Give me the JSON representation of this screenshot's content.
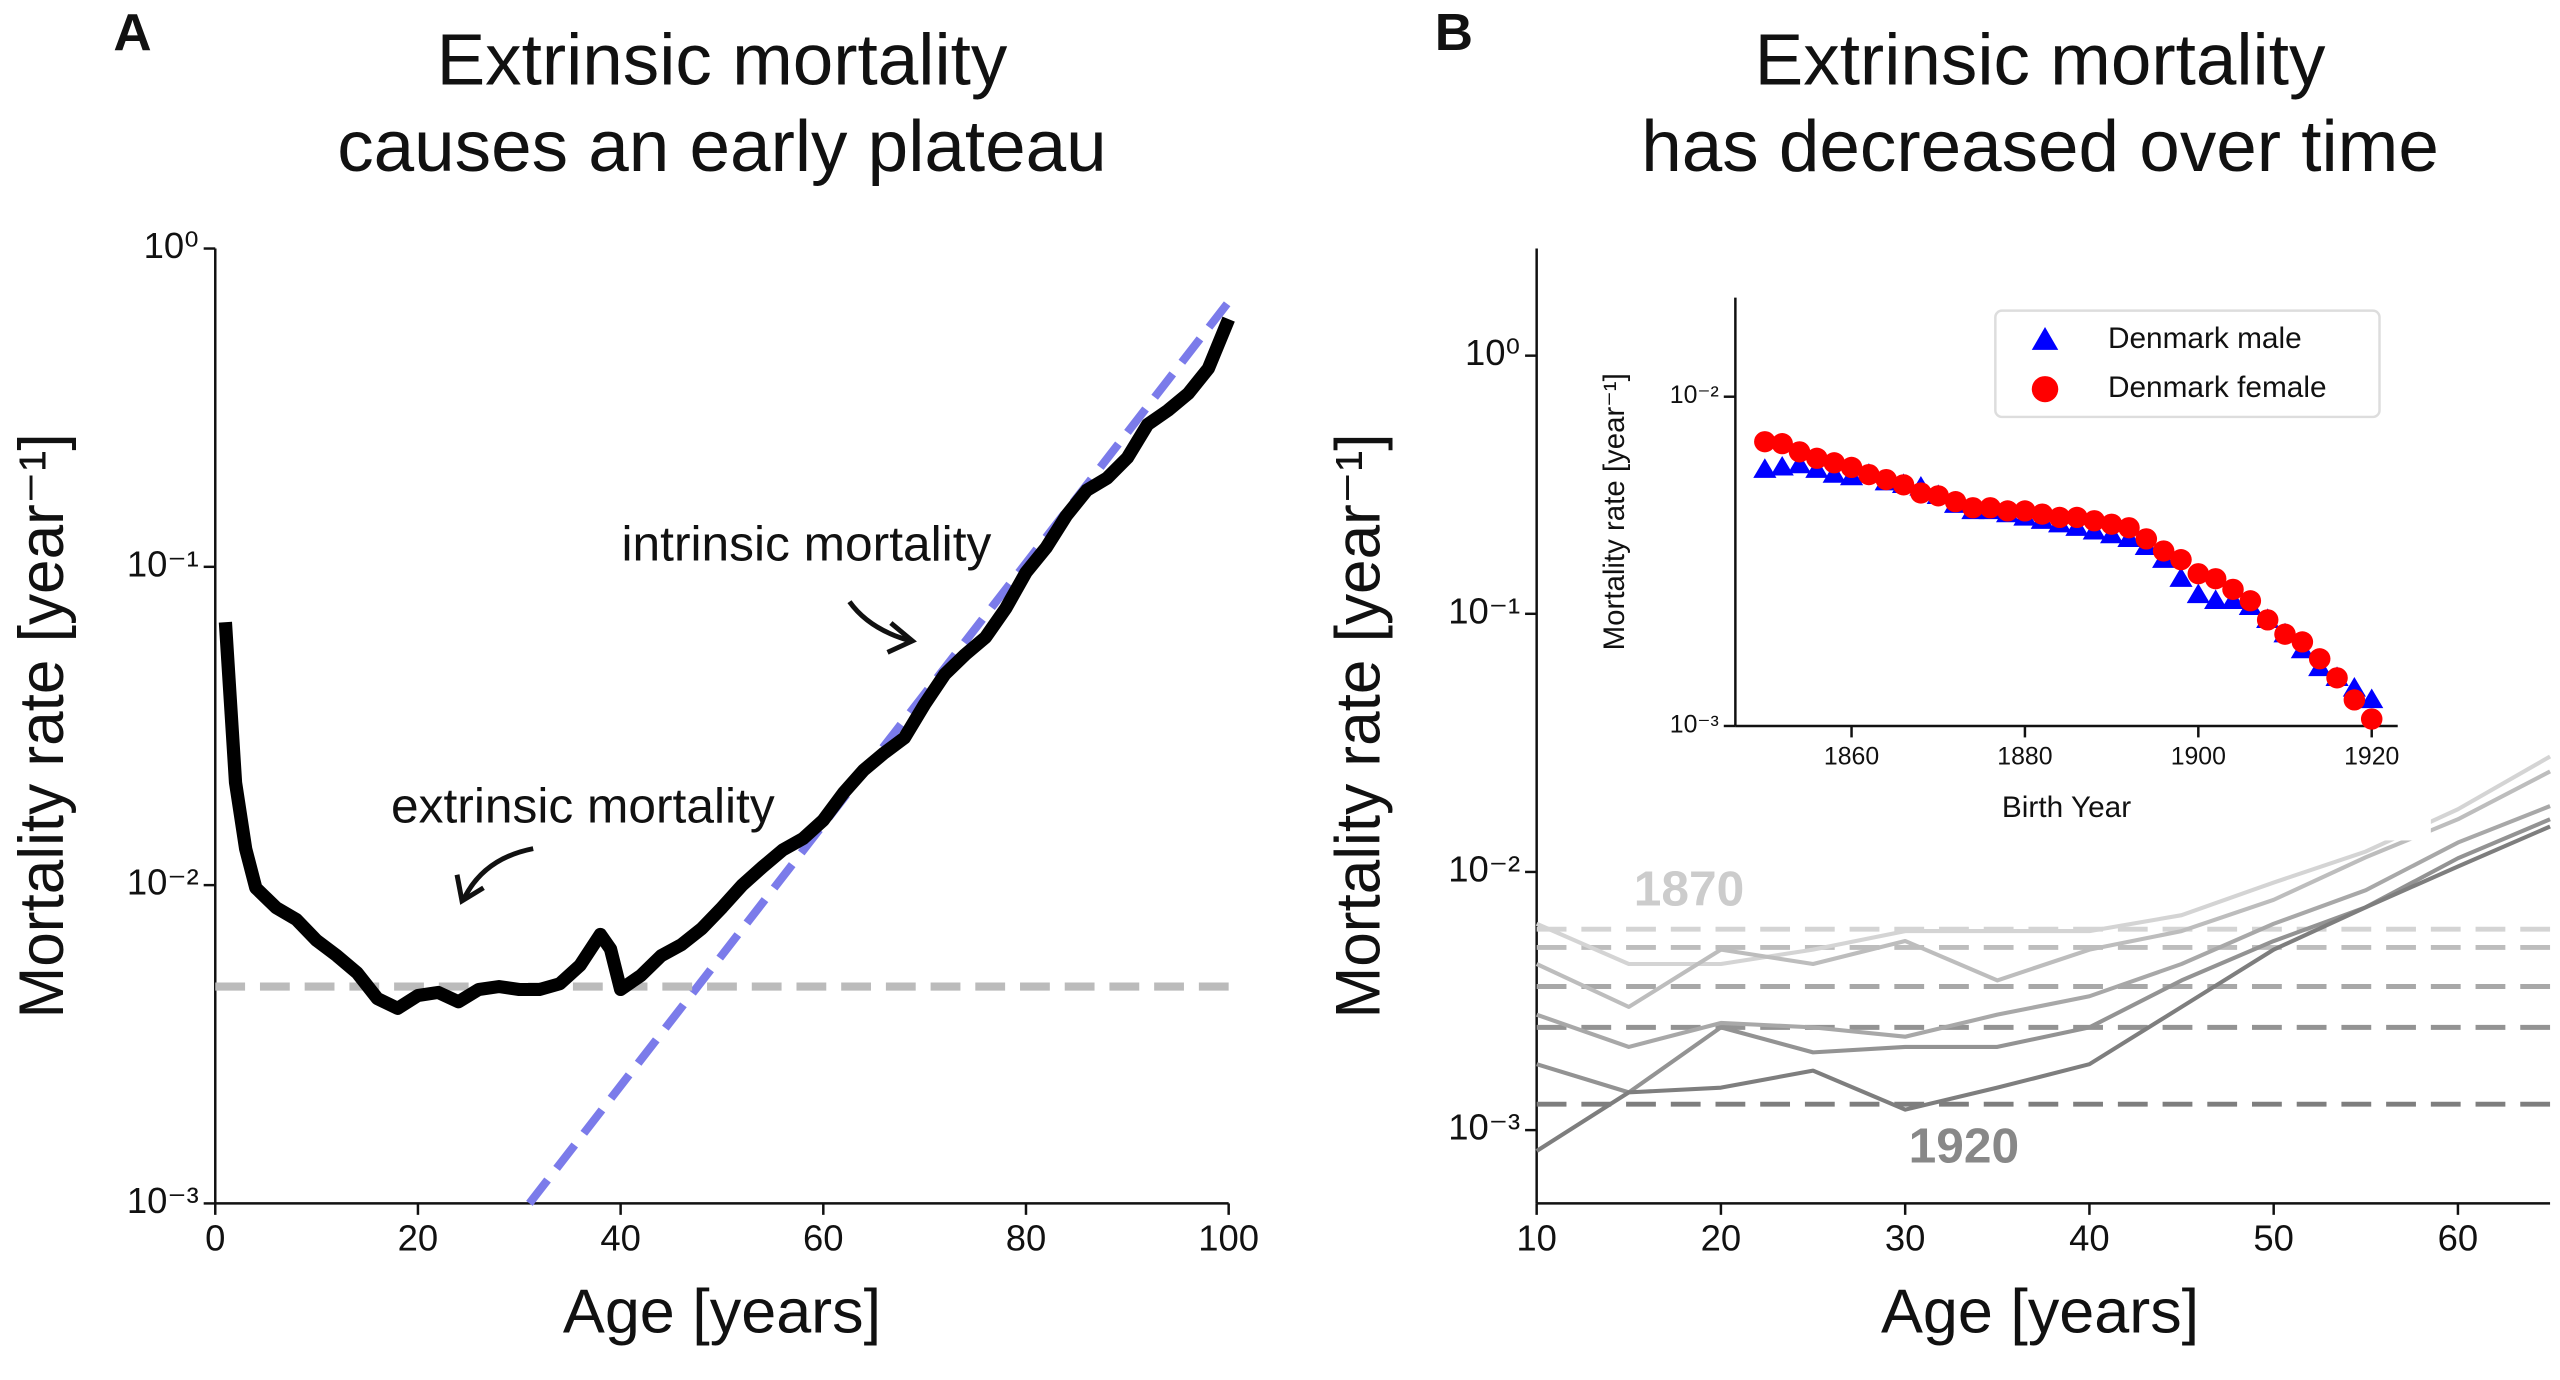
{
  "chart_data": [
    {
      "type": "line",
      "panel_label": "A",
      "title": [
        "Extrinsic mortality",
        "causes an early plateau"
      ],
      "xlabel": "Age [years]",
      "ylabel": "Mortality rate [year⁻¹]",
      "xlim": [
        0,
        100
      ],
      "xticks": [
        0,
        20,
        40,
        60,
        80,
        100
      ],
      "ylim": [
        0.001,
        1
      ],
      "log_y": true,
      "yticks": [
        {
          "value": 0.001,
          "label": "10⁻³"
        },
        {
          "value": 0.01,
          "label": "10⁻²"
        },
        {
          "value": 0.1,
          "label": "10⁻¹"
        },
        {
          "value": 1,
          "label": "10⁰"
        }
      ],
      "annotations": [
        "intrinsic mortality",
        "extrinsic mortality"
      ],
      "series": [
        {
          "color": "#7b7bea",
          "linestyle": "dashed",
          "linewidth": 5,
          "x": [
            31,
            100
          ],
          "values": [
            0.001,
            0.68
          ]
        },
        {
          "color": "#bbbbbb",
          "linestyle": "dashed",
          "linewidth": 5,
          "x": [
            0,
            100
          ],
          "values": [
            0.0048,
            0.0048
          ]
        },
        {
          "color": "#000000",
          "linestyle": "solid",
          "linewidth": 8,
          "x": [
            1,
            2,
            3,
            4,
            6,
            8,
            10,
            12,
            14,
            16,
            18,
            20,
            22,
            24,
            26,
            28,
            30,
            32,
            34,
            36,
            38,
            39,
            40,
            42,
            44,
            46,
            48,
            50,
            52,
            54,
            56,
            58,
            60,
            62,
            64,
            66,
            68,
            70,
            72,
            74,
            76,
            78,
            80,
            82,
            84,
            86,
            88,
            90,
            92,
            94,
            96,
            98,
            100
          ],
          "values": [
            0.067,
            0.021,
            0.013,
            0.0098,
            0.0085,
            0.0078,
            0.0067,
            0.006,
            0.0053,
            0.0044,
            0.0041,
            0.0045,
            0.0046,
            0.0043,
            0.0047,
            0.0048,
            0.0047,
            0.0047,
            0.0049,
            0.0056,
            0.007,
            0.0063,
            0.0047,
            0.0052,
            0.006,
            0.0065,
            0.0073,
            0.0085,
            0.01,
            0.0114,
            0.0129,
            0.014,
            0.016,
            0.0195,
            0.023,
            0.026,
            0.029,
            0.037,
            0.046,
            0.053,
            0.06,
            0.074,
            0.096,
            0.115,
            0.145,
            0.174,
            0.19,
            0.22,
            0.28,
            0.31,
            0.35,
            0.42,
            0.6
          ]
        }
      ]
    },
    {
      "type": "line",
      "panel_label": "B",
      "title": [
        "Extrinsic mortality",
        "has decreased over time"
      ],
      "xlabel": "Age [years]",
      "ylabel": "Mortality rate [year⁻¹]",
      "xlim": [
        10,
        65
      ],
      "xticks": [
        10,
        20,
        30,
        40,
        50,
        60
      ],
      "ylim": [
        0.00052,
        2.6
      ],
      "log_y": true,
      "yticks": [
        {
          "value": 0.001,
          "label": "10⁻³"
        },
        {
          "value": 0.01,
          "label": "10⁻²"
        },
        {
          "value": 0.1,
          "label": "10⁻¹"
        },
        {
          "value": 1,
          "label": "10⁰"
        }
      ],
      "annotations": [
        "1870",
        "1920"
      ],
      "x": [
        10,
        15,
        20,
        25,
        30,
        35,
        40,
        45,
        50,
        55,
        60,
        65
      ],
      "series": [
        {
          "color": "#d4d4d4",
          "linestyle": "dashed",
          "linewidth": 3,
          "x": [
            10,
            65
          ],
          "values": [
            0.006,
            0.006
          ]
        },
        {
          "color": "#bdbdbd",
          "linestyle": "dashed",
          "linewidth": 3,
          "x": [
            10,
            65
          ],
          "values": [
            0.0051,
            0.0051
          ]
        },
        {
          "color": "#a8a8a8",
          "linestyle": "dashed",
          "linewidth": 3,
          "x": [
            10,
            65
          ],
          "values": [
            0.0036,
            0.0036
          ]
        },
        {
          "color": "#939393",
          "linestyle": "dashed",
          "linewidth": 3,
          "x": [
            10,
            65
          ],
          "values": [
            0.0025,
            0.0025
          ]
        },
        {
          "color": "#7e7e7e",
          "linestyle": "dashed",
          "linewidth": 3,
          "x": [
            10,
            65
          ],
          "values": [
            0.00126,
            0.00126
          ]
        },
        {
          "color": "#d4d4d4",
          "linestyle": "solid",
          "linewidth": 2.5,
          "values": [
            0.0063,
            0.0044,
            0.0044,
            0.005,
            0.0059,
            0.0059,
            0.0059,
            0.0068,
            0.0091,
            0.012,
            0.0175,
            0.028
          ]
        },
        {
          "color": "#bdbdbd",
          "linestyle": "solid",
          "linewidth": 2.5,
          "values": [
            0.0044,
            0.003,
            0.005,
            0.0044,
            0.0054,
            0.0038,
            0.005,
            0.0059,
            0.0078,
            0.0114,
            0.016,
            0.0245
          ]
        },
        {
          "color": "#a8a8a8",
          "linestyle": "solid",
          "linewidth": 2.5,
          "values": [
            0.0028,
            0.0021,
            0.0026,
            0.0025,
            0.0023,
            0.0028,
            0.0033,
            0.0044,
            0.0063,
            0.0085,
            0.013,
            0.018
          ]
        },
        {
          "color": "#939393",
          "linestyle": "solid",
          "linewidth": 2.5,
          "values": [
            0.0018,
            0.0014,
            0.0025,
            0.002,
            0.0021,
            0.0021,
            0.0025,
            0.0038,
            0.0054,
            0.0073,
            0.0113,
            0.016
          ]
        },
        {
          "color": "#7e7e7e",
          "linestyle": "solid",
          "linewidth": 2.5,
          "values": [
            0.00083,
            0.0014,
            0.00146,
            0.0017,
            0.0012,
            0.00146,
            0.0018,
            0.003,
            0.005,
            0.0073,
            0.0105,
            0.015
          ]
        }
      ]
    },
    {
      "type": "scatter",
      "xlabel": "Birth Year",
      "ylabel": "Mortality rate [year⁻¹]",
      "xlim": [
        1846.6,
        1923
      ],
      "xticks": [
        1860,
        1880,
        1900,
        1920
      ],
      "ylim": [
        0.001,
        0.02
      ],
      "log_y": true,
      "yticks": [
        {
          "value": 0.001,
          "label": "10⁻³"
        },
        {
          "value": 0.01,
          "label": "10⁻²"
        }
      ],
      "legend": "upper right",
      "x": [
        1850,
        1852,
        1854,
        1856,
        1858,
        1860,
        1862,
        1864,
        1866,
        1868,
        1870,
        1872,
        1874,
        1876,
        1878,
        1880,
        1882,
        1884,
        1886,
        1888,
        1890,
        1892,
        1894,
        1896,
        1898,
        1900,
        1902,
        1904,
        1906,
        1908,
        1910,
        1912,
        1914,
        1916,
        1918,
        1920
      ],
      "series": [
        {
          "name": "Denmark male",
          "color": "#0000ff",
          "marker": "triangle",
          "values": [
            0.006,
            0.0061,
            0.0062,
            0.006,
            0.0058,
            0.0057,
            0.0058,
            0.0055,
            0.0054,
            0.0053,
            0.005,
            0.0047,
            0.0045,
            0.0045,
            0.0044,
            0.0043,
            0.0042,
            0.0041,
            0.004,
            0.0039,
            0.0038,
            0.0037,
            0.0035,
            0.0032,
            0.0028,
            0.0025,
            0.0024,
            0.0024,
            0.0023,
            0.0021,
            0.0019,
            0.0017,
            0.0015,
            0.0014,
            0.0013,
            0.0012
          ]
        },
        {
          "name": "Denmark female",
          "color": "#ff0000",
          "marker": "circle",
          "values": [
            0.0073,
            0.0072,
            0.0068,
            0.0065,
            0.0063,
            0.0061,
            0.0058,
            0.0056,
            0.0054,
            0.0051,
            0.005,
            0.0048,
            0.0046,
            0.0046,
            0.0045,
            0.0045,
            0.0044,
            0.0043,
            0.0043,
            0.0042,
            0.0041,
            0.004,
            0.0037,
            0.0034,
            0.0032,
            0.0029,
            0.0028,
            0.0026,
            0.0024,
            0.0021,
            0.0019,
            0.0018,
            0.0016,
            0.0014,
            0.0012,
            0.00105
          ]
        }
      ]
    }
  ]
}
